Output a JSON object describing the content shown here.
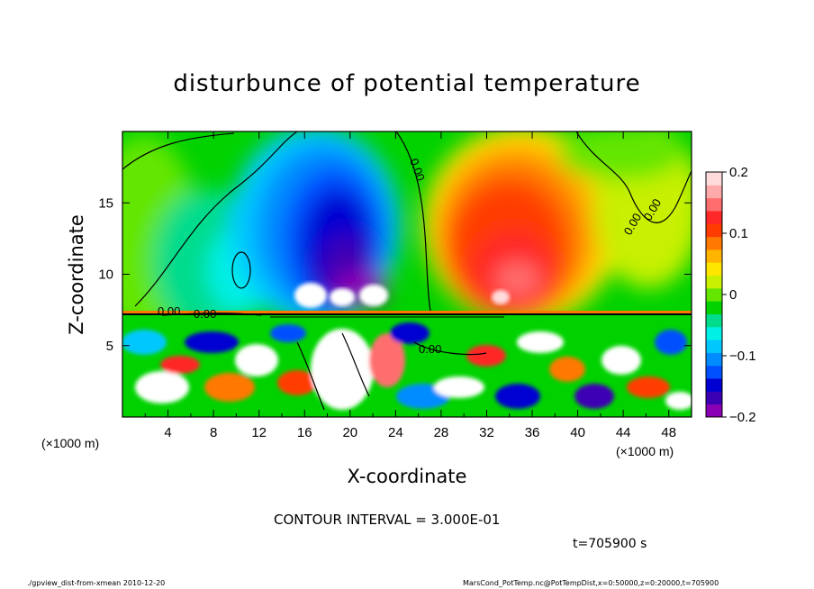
{
  "chart_data": {
    "type": "heatmap",
    "title": "disturbunce of potential temperature",
    "xlabel": "X-coordinate",
    "ylabel": "Z-coordinate",
    "x_unit_left": "(×1000 m)",
    "x_unit_right": "(×1000 m)",
    "xlim": [
      0,
      50
    ],
    "ylim": [
      0,
      20
    ],
    "x_ticks": [
      4,
      8,
      12,
      16,
      20,
      24,
      28,
      32,
      36,
      40,
      44,
      48
    ],
    "y_ticks": [
      5,
      10,
      15
    ],
    "colorbar": {
      "range": [
        -0.2,
        0.2
      ],
      "ticks": [
        "0.2",
        "0.1",
        "0",
        "−0.1",
        "−0.2"
      ],
      "tick_values": [
        0.2,
        0.1,
        0,
        -0.1,
        -0.2
      ],
      "colors": [
        "#8a00b4",
        "#3c00b4",
        "#0000d2",
        "#0050ff",
        "#008cff",
        "#00c8ff",
        "#00f0e6",
        "#00dc8c",
        "#00d200",
        "#64e600",
        "#c8f000",
        "#ffe600",
        "#ffb400",
        "#ff7800",
        "#ff3c00",
        "#ff2828",
        "#ff6e6e",
        "#ffaaaa",
        "#ffdcdc"
      ]
    },
    "contour_labels": [
      "0.00",
      "0.00",
      "0.00",
      "0.00",
      "0.00",
      "0.00"
    ],
    "contour_interval": "CONTOUR INTERVAL = 3.000E-01",
    "time": "t=705900 s"
  },
  "footer": {
    "left": "./gpview_dist-from-xmean  2010-12-20",
    "right": "MarsCond_PotTemp.nc@PotTempDist,x=0:50000,z=0:20000,t=705900"
  }
}
